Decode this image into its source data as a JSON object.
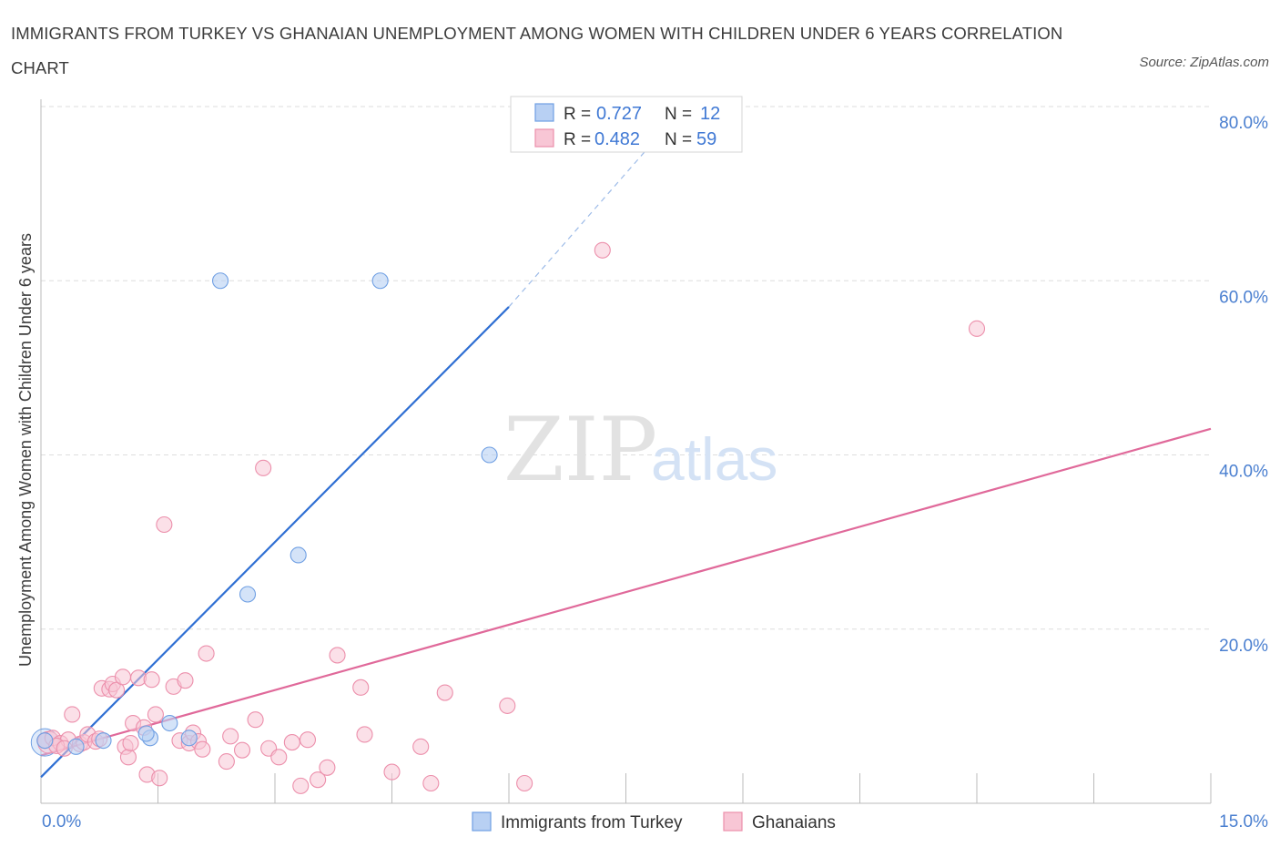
{
  "title": "IMMIGRANTS FROM TURKEY VS GHANAIAN UNEMPLOYMENT AMONG WOMEN WITH CHILDREN UNDER 6 YEARS CORRELATION CHART",
  "source": "Source: ZipAtlas.com",
  "watermark": {
    "zip": "ZIP",
    "atlas": "atlas"
  },
  "colors": {
    "blue_fill": "#b8d0f3",
    "blue_stroke": "#6f9fe3",
    "blue_line": "#2f6fd3",
    "pink_fill": "#f8c6d5",
    "pink_stroke": "#ec8fab",
    "pink_line": "#e0699a",
    "grid": "#dddddd",
    "tick_text": "#4a7fd0"
  },
  "chart_data": {
    "type": "scatter",
    "title": "IMMIGRANTS FROM TURKEY VS GHANAIAN UNEMPLOYMENT AMONG WOMEN WITH CHILDREN UNDER 6 YEARS CORRELATION CHART",
    "xlabel": "",
    "ylabel": "Unemployment Among Women with Children Under 6 years",
    "xlim": [
      0,
      15
    ],
    "ylim": [
      0,
      80
    ],
    "x_tick_labels": [
      "0.0%",
      "15.0%"
    ],
    "y_ticks": [
      20,
      40,
      60,
      80
    ],
    "y_tick_labels": [
      "20.0%",
      "40.0%",
      "60.0%",
      "80.0%"
    ],
    "grid": true,
    "legend_top": {
      "entries": [
        {
          "r_label": "R =",
          "r_value": "0.727",
          "n_label": "N =",
          "n_value": "12"
        },
        {
          "r_label": "R =",
          "r_value": "0.482",
          "n_label": "N =",
          "n_value": "59"
        }
      ]
    },
    "legend_bottom": [
      "Immigrants from Turkey",
      "Ghanaians"
    ],
    "series": [
      {
        "name": "Immigrants from Turkey",
        "r": 0.727,
        "n": 12,
        "trend": {
          "x0": 0,
          "y0": 3.0,
          "x1": 6.0,
          "y1": 57.0,
          "dash_to_x": 8.2,
          "dash_to_y": 79.5
        },
        "points": [
          [
            0.05,
            7.2
          ],
          [
            0.45,
            6.5
          ],
          [
            0.8,
            7.2
          ],
          [
            1.4,
            7.5
          ],
          [
            1.35,
            8.0
          ],
          [
            1.65,
            9.2
          ],
          [
            1.9,
            7.5
          ],
          [
            2.3,
            60.0
          ],
          [
            2.65,
            24.0
          ],
          [
            3.3,
            28.5
          ],
          [
            4.35,
            60.0
          ],
          [
            5.75,
            40.0
          ]
        ]
      },
      {
        "name": "Ghanaians",
        "r": 0.482,
        "n": 59,
        "trend": {
          "x0": 0,
          "y0": 5.5,
          "x1": 15.0,
          "y1": 43.0
        },
        "points": [
          [
            0.05,
            7.2
          ],
          [
            0.15,
            7.5
          ],
          [
            0.25,
            6.9
          ],
          [
            0.35,
            7.3
          ],
          [
            0.4,
            10.2
          ],
          [
            0.5,
            6.8
          ],
          [
            0.55,
            7.0
          ],
          [
            0.6,
            7.9
          ],
          [
            0.7,
            7.1
          ],
          [
            0.75,
            7.4
          ],
          [
            0.78,
            13.2
          ],
          [
            0.88,
            13.1
          ],
          [
            0.92,
            13.7
          ],
          [
            0.97,
            13.0
          ],
          [
            1.05,
            14.5
          ],
          [
            1.08,
            6.5
          ],
          [
            1.12,
            5.3
          ],
          [
            1.18,
            9.2
          ],
          [
            1.25,
            14.4
          ],
          [
            1.32,
            8.7
          ],
          [
            1.36,
            3.3
          ],
          [
            1.42,
            14.2
          ],
          [
            1.47,
            10.2
          ],
          [
            1.52,
            2.9
          ],
          [
            1.58,
            32.0
          ],
          [
            1.7,
            13.4
          ],
          [
            1.78,
            7.2
          ],
          [
            1.85,
            14.1
          ],
          [
            1.9,
            6.9
          ],
          [
            1.95,
            8.1
          ],
          [
            2.02,
            7.1
          ],
          [
            2.07,
            6.2
          ],
          [
            2.12,
            17.2
          ],
          [
            2.38,
            4.8
          ],
          [
            2.43,
            7.7
          ],
          [
            2.58,
            6.1
          ],
          [
            2.75,
            9.6
          ],
          [
            2.85,
            38.5
          ],
          [
            2.92,
            6.3
          ],
          [
            3.05,
            5.3
          ],
          [
            3.22,
            7.0
          ],
          [
            3.33,
            2.0
          ],
          [
            3.42,
            7.3
          ],
          [
            3.55,
            2.7
          ],
          [
            3.67,
            4.1
          ],
          [
            3.8,
            17.0
          ],
          [
            4.1,
            13.3
          ],
          [
            4.15,
            7.9
          ],
          [
            4.5,
            3.6
          ],
          [
            4.87,
            6.5
          ],
          [
            5.0,
            2.3
          ],
          [
            5.18,
            12.7
          ],
          [
            5.98,
            11.2
          ],
          [
            6.2,
            2.3
          ],
          [
            7.2,
            63.5
          ],
          [
            12.0,
            54.5
          ],
          [
            0.2,
            6.6
          ],
          [
            0.3,
            6.3
          ],
          [
            1.15,
            6.9
          ]
        ]
      }
    ]
  }
}
